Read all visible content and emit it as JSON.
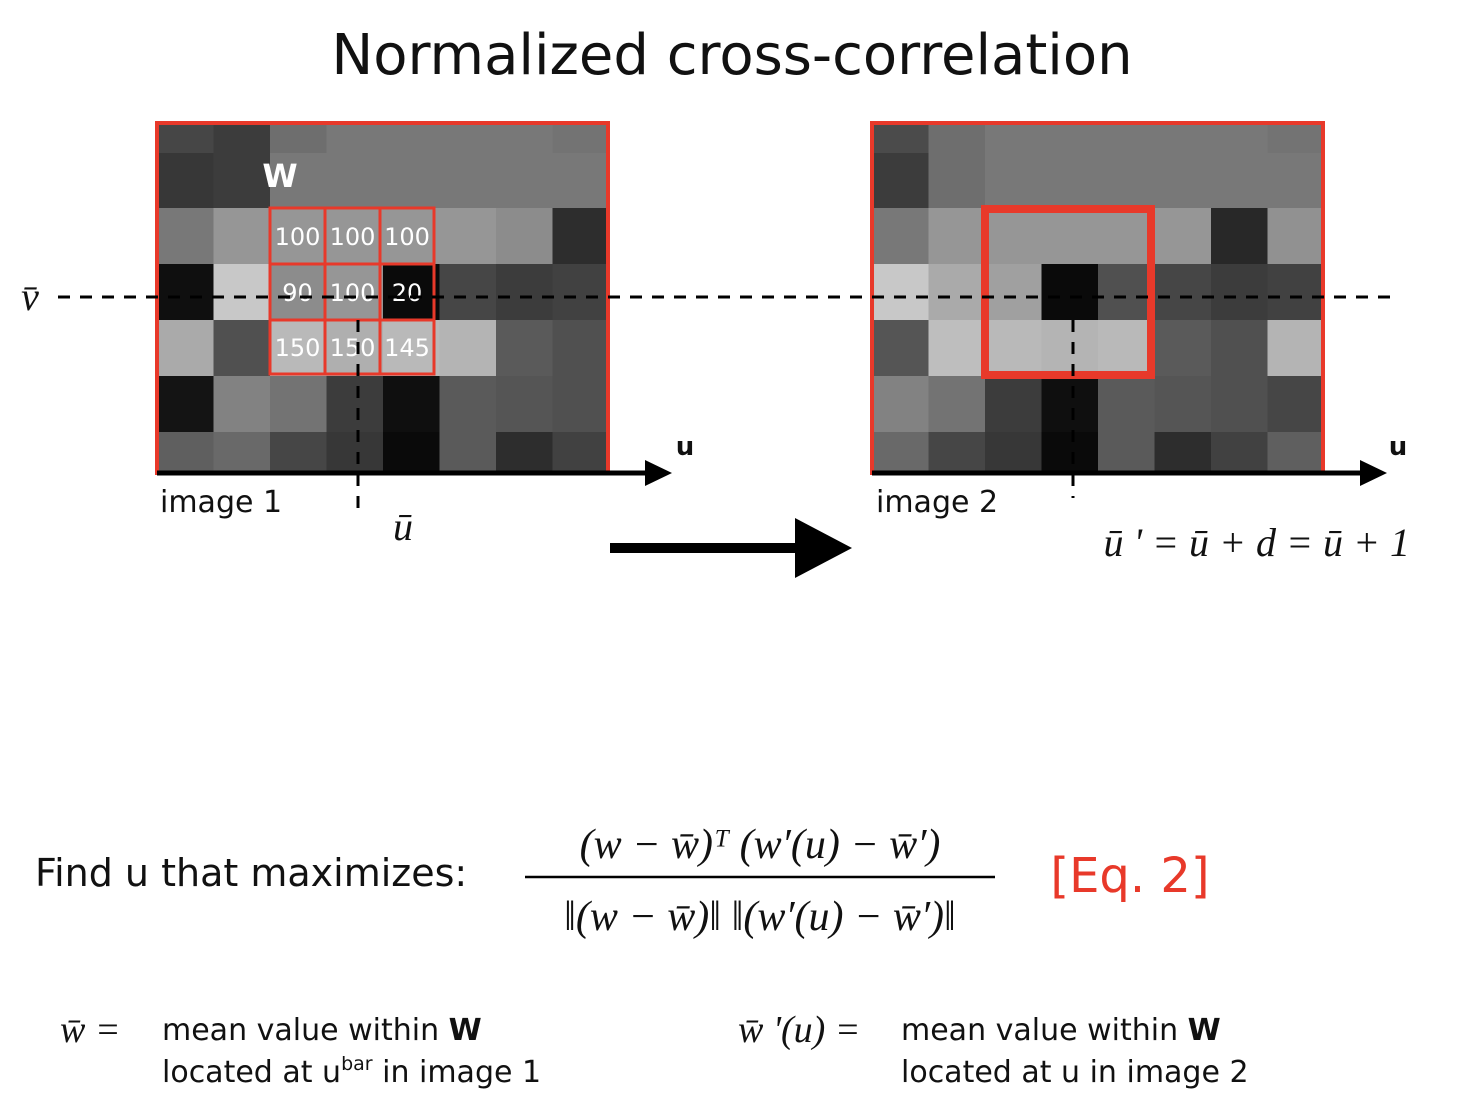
{
  "title": "Normalized cross-correlation",
  "image1": {
    "label": "image 1",
    "window_label": "W",
    "cells": [
      [
        100,
        100,
        100
      ],
      [
        90,
        100,
        20
      ],
      [
        150,
        150,
        145
      ]
    ],
    "v_label": "v̄",
    "u_label": "ū",
    "axis_label": "u"
  },
  "image2": {
    "label": "image 2",
    "axis_label": "u",
    "u_prime_eq": "ū ' = ū + d = ū + 1"
  },
  "equation": {
    "prompt": "Find u that maximizes:",
    "numerator": "(w − w̄)ᵀ (w′(u) − w̄′)",
    "denominator": "‖(w − w̄)‖ ‖(w′(u) − w̄′)‖",
    "tag": "[Eq. 2]"
  },
  "definitions": [
    {
      "symbol": "w̄ =",
      "line1": [
        "mean value within ",
        "W"
      ],
      "line2": [
        "located at u",
        "bar",
        " in image 1"
      ]
    },
    {
      "symbol": "w̄ '(u) =",
      "line1": [
        "mean value within ",
        "W"
      ],
      "line2": [
        "located at u in image 2"
      ]
    }
  ]
}
